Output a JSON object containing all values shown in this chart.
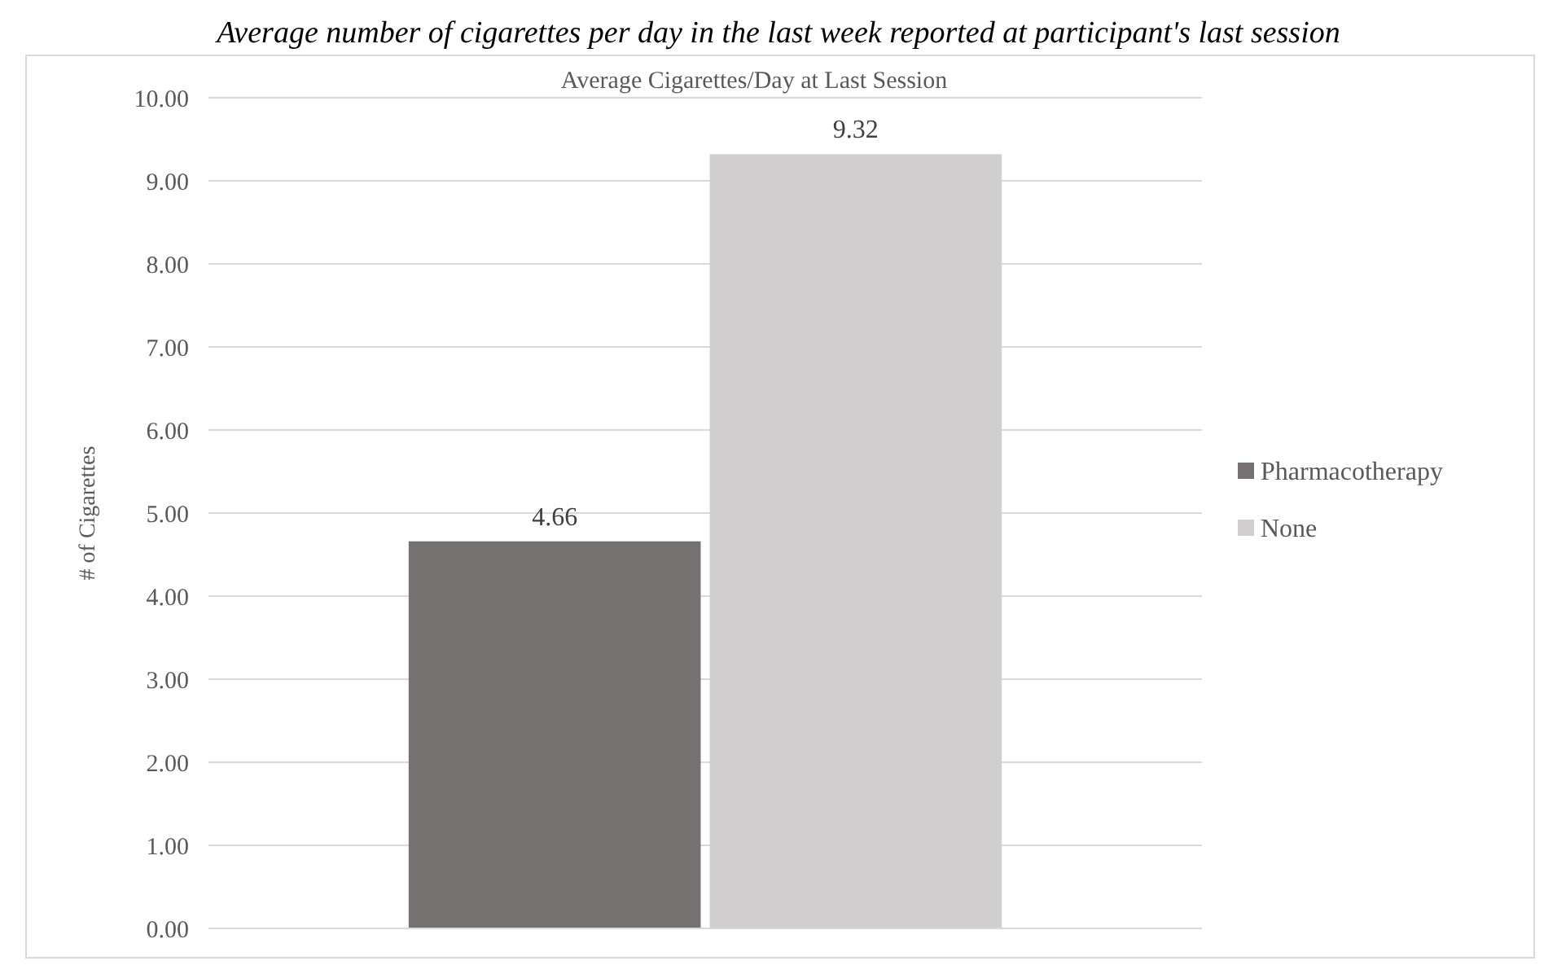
{
  "chart_data": {
    "type": "bar",
    "subtitle": "Average number of cigarettes per day in the last week reported at participant's last session",
    "title": "Average  Cigarettes/Day at Last Session",
    "ylabel": "# of Cigarettes",
    "categories": [
      null
    ],
    "series": [
      {
        "name": "Pharmacotherapy",
        "color": "#767171",
        "values": [
          4.66
        ]
      },
      {
        "name": "None",
        "color": "#d0cece",
        "values": [
          9.32
        ]
      }
    ],
    "ylim": [
      0,
      10
    ],
    "yticks": [
      {
        "value": 0,
        "label": "0.00"
      },
      {
        "value": 1,
        "label": "1.00"
      },
      {
        "value": 2,
        "label": "2.00"
      },
      {
        "value": 3,
        "label": "3.00"
      },
      {
        "value": 4,
        "label": "4.00"
      },
      {
        "value": 5,
        "label": "5.00"
      },
      {
        "value": 6,
        "label": "6.00"
      },
      {
        "value": 7,
        "label": "7.00"
      },
      {
        "value": 8,
        "label": "8.00"
      },
      {
        "value": 9,
        "label": "9.00"
      },
      {
        "value": 10,
        "label": "10.00"
      }
    ],
    "grid": "y",
    "legend": "right",
    "data_labels": true
  }
}
